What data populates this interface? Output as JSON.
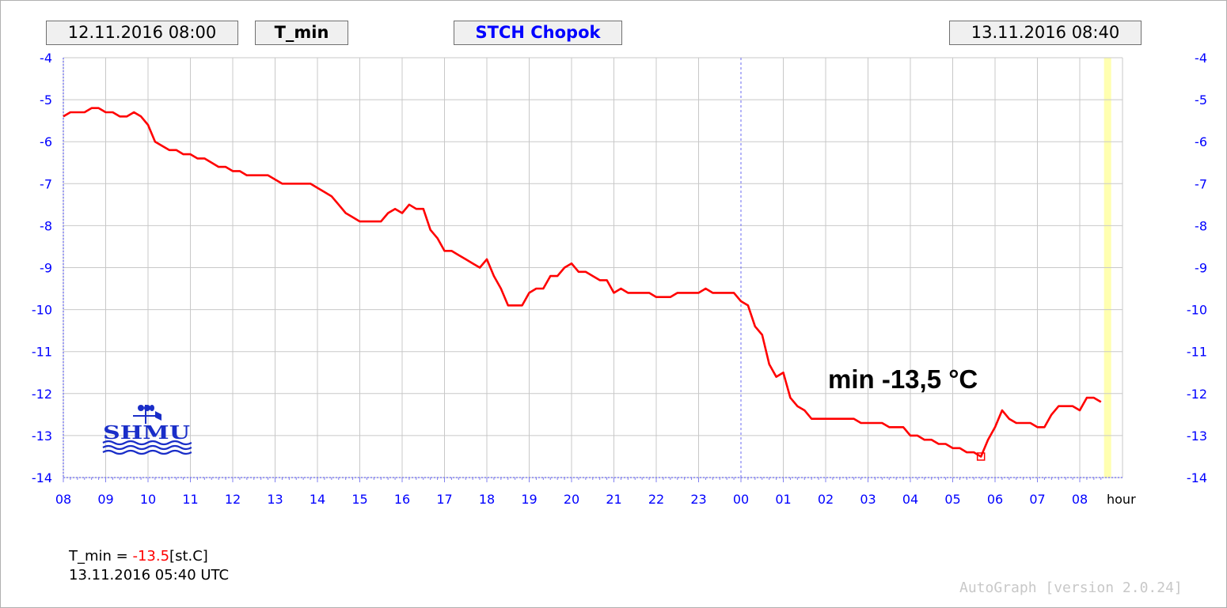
{
  "header": {
    "start": "12.11.2016 08:00",
    "param": "T_min",
    "station": "STCH Chopok",
    "end": "13.11.2016 08:40"
  },
  "logo_text": "SHMU",
  "annotation": "min -13,5 °C",
  "info": {
    "label": "T_min = ",
    "value": "-13.5",
    "unit": "[st.C]",
    "time": "13.11.2016 05:40 UTC"
  },
  "footer": "AutoGraph [version 2.0.24]",
  "colors": {
    "series": "#ff0000",
    "axis_text": "#0000ff",
    "grid": "#c8c8c8",
    "now_band": "#ffffb0"
  },
  "chart_data": {
    "type": "line",
    "title": "",
    "xlabel": "hour",
    "ylabel": "",
    "x_tick_labels": [
      "08",
      "09",
      "10",
      "11",
      "12",
      "13",
      "14",
      "15",
      "16",
      "17",
      "18",
      "19",
      "20",
      "21",
      "22",
      "23",
      "00",
      "01",
      "02",
      "03",
      "04",
      "05",
      "06",
      "07",
      "08"
    ],
    "ylim": [
      -14,
      -4
    ],
    "y_ticks": [
      -4,
      -5,
      -6,
      -7,
      -8,
      -9,
      -10,
      -11,
      -12,
      -13,
      -14
    ],
    "grid": true,
    "day_boundary_hour": 16,
    "current_time_hour": 24.6667,
    "min_marker": {
      "x": 21.6667,
      "y": -13.5
    },
    "series": [
      {
        "name": "T_min",
        "x": [
          0,
          0.1667,
          0.3333,
          0.5,
          0.6667,
          0.8333,
          1,
          1.1667,
          1.3333,
          1.5,
          1.6667,
          1.8333,
          2,
          2.1667,
          2.3333,
          2.5,
          2.6667,
          2.8333,
          3,
          3.1667,
          3.3333,
          3.5,
          3.6667,
          3.8333,
          4,
          4.1667,
          4.3333,
          4.5,
          4.6667,
          4.8333,
          5,
          5.1667,
          5.3333,
          5.5,
          5.6667,
          5.8333,
          6,
          6.1667,
          6.3333,
          6.5,
          6.6667,
          6.8333,
          7,
          7.1667,
          7.3333,
          7.5,
          7.6667,
          7.8333,
          8,
          8.1667,
          8.3333,
          8.5,
          8.6667,
          8.8333,
          9,
          9.1667,
          9.3333,
          9.5,
          9.6667,
          9.8333,
          10,
          10.1667,
          10.3333,
          10.5,
          10.6667,
          10.8333,
          11,
          11.1667,
          11.3333,
          11.5,
          11.6667,
          11.8333,
          12,
          12.1667,
          12.3333,
          12.5,
          12.6667,
          12.8333,
          13,
          13.1667,
          13.3333,
          13.5,
          13.6667,
          13.8333,
          14,
          14.1667,
          14.3333,
          14.5,
          14.6667,
          14.8333,
          15,
          15.1667,
          15.3333,
          15.5,
          15.6667,
          15.8333,
          16,
          16.1667,
          16.3333,
          16.5,
          16.6667,
          16.8333,
          17,
          17.1667,
          17.3333,
          17.5,
          17.6667,
          17.8333,
          18,
          18.1667,
          18.3333,
          18.5,
          18.6667,
          18.8333,
          19,
          19.1667,
          19.3333,
          19.5,
          19.6667,
          19.8333,
          20,
          20.1667,
          20.3333,
          20.5,
          20.6667,
          20.8333,
          21,
          21.1667,
          21.3333,
          21.5,
          21.6667,
          21.8333,
          22,
          22.1667,
          22.3333,
          22.5,
          22.6667,
          22.8333,
          23,
          23.1667,
          23.3333,
          23.5,
          23.6667,
          23.8333,
          24,
          24.1667,
          24.3333,
          24.5
        ],
        "values": [
          -5.4,
          -5.3,
          -5.3,
          -5.3,
          -5.2,
          -5.2,
          -5.3,
          -5.3,
          -5.4,
          -5.4,
          -5.3,
          -5.4,
          -5.6,
          -6,
          -6.1,
          -6.2,
          -6.2,
          -6.3,
          -6.3,
          -6.4,
          -6.4,
          -6.5,
          -6.6,
          -6.6,
          -6.7,
          -6.7,
          -6.8,
          -6.8,
          -6.8,
          -6.8,
          -6.9,
          -7,
          -7,
          -7,
          -7,
          -7,
          -7.1,
          -7.2,
          -7.3,
          -7.5,
          -7.7,
          -7.8,
          -7.9,
          -7.9,
          -7.9,
          -7.9,
          -7.7,
          -7.6,
          -7.7,
          -7.5,
          -7.6,
          -7.6,
          -8.1,
          -8.3,
          -8.6,
          -8.6,
          -8.7,
          -8.8,
          -8.9,
          -9,
          -8.8,
          -9.2,
          -9.5,
          -9.9,
          -9.9,
          -9.9,
          -9.6,
          -9.5,
          -9.5,
          -9.2,
          -9.2,
          -9,
          -8.9,
          -9.1,
          -9.1,
          -9.2,
          -9.3,
          -9.3,
          -9.6,
          -9.5,
          -9.6,
          -9.6,
          -9.6,
          -9.6,
          -9.7,
          -9.7,
          -9.7,
          -9.6,
          -9.6,
          -9.6,
          -9.6,
          -9.5,
          -9.6,
          -9.6,
          -9.6,
          -9.6,
          -9.8,
          -9.9,
          -10.4,
          -10.6,
          -11.3,
          -11.6,
          -11.5,
          -12.1,
          -12.3,
          -12.4,
          -12.6,
          -12.6,
          -12.6,
          -12.6,
          -12.6,
          -12.6,
          -12.6,
          -12.7,
          -12.7,
          -12.7,
          -12.7,
          -12.8,
          -12.8,
          -12.8,
          -13,
          -13,
          -13.1,
          -13.1,
          -13.2,
          -13.2,
          -13.3,
          -13.3,
          -13.4,
          -13.4,
          -13.5,
          -13.1,
          -12.8,
          -12.4,
          -12.6,
          -12.7,
          -12.7,
          -12.7,
          -12.8,
          -12.8,
          -12.5,
          -12.3,
          -12.3,
          -12.3,
          -12.4,
          -12.1,
          -12.1,
          -12.2
        ]
      }
    ]
  }
}
